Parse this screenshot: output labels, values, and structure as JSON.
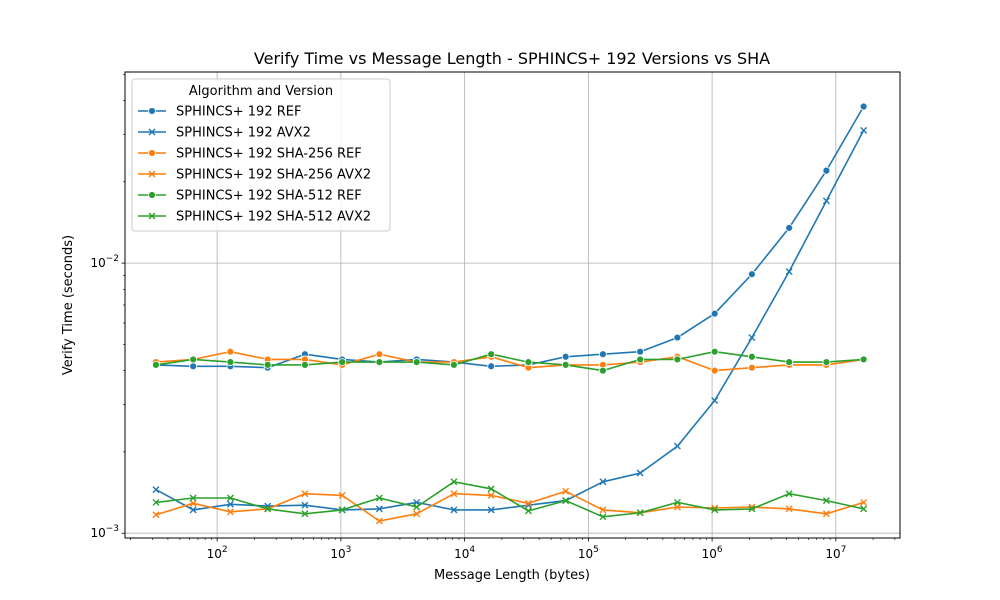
{
  "chart_data": {
    "type": "line",
    "title": "Verify Time vs Message Length - SPHINCS+ 192 Versions vs SHA",
    "xlabel": "Message Length (bytes)",
    "ylabel": "Verify Time (seconds)",
    "xscale": "log",
    "yscale": "log",
    "xlim": [
      18,
      33000000
    ],
    "ylim": [
      0.00096,
      0.051
    ],
    "grid": true,
    "x_ticks": [
      {
        "value": 100,
        "base": "10",
        "exp": "2"
      },
      {
        "value": 1000,
        "base": "10",
        "exp": "3"
      },
      {
        "value": 10000,
        "base": "10",
        "exp": "4"
      },
      {
        "value": 100000,
        "base": "10",
        "exp": "5"
      },
      {
        "value": 1000000,
        "base": "10",
        "exp": "6"
      },
      {
        "value": 10000000,
        "base": "10",
        "exp": "7"
      }
    ],
    "y_ticks": [
      {
        "value": 0.001,
        "base": "10",
        "exp": "−3"
      },
      {
        "value": 0.01,
        "base": "10",
        "exp": "−2"
      }
    ],
    "legend": {
      "title": "Algorithm and Version",
      "position": "top-left"
    },
    "x": [
      32,
      64,
      128,
      256,
      512,
      1024,
      2048,
      4096,
      8192,
      16384,
      32768,
      65536,
      131072,
      262144,
      524288,
      1048576,
      2097152,
      4194304,
      8388608,
      16777216
    ],
    "series": [
      {
        "name": "SPHINCS+ 192 REF",
        "color": "#1f77b4",
        "marker": "circle",
        "values": [
          0.0042,
          0.00415,
          0.00415,
          0.0041,
          0.0046,
          0.0044,
          0.0043,
          0.0044,
          0.0043,
          0.00415,
          0.0042,
          0.0045,
          0.0046,
          0.0047,
          0.0053,
          0.0065,
          0.0091,
          0.0135,
          0.022,
          0.038
        ]
      },
      {
        "name": "SPHINCS+ 192 AVX2",
        "color": "#1f77b4",
        "marker": "x",
        "values": [
          0.00145,
          0.00122,
          0.00128,
          0.00126,
          0.00127,
          0.00122,
          0.00123,
          0.0013,
          0.00122,
          0.00122,
          0.00127,
          0.00132,
          0.00155,
          0.00167,
          0.0021,
          0.0031,
          0.0053,
          0.0093,
          0.017,
          0.031
        ]
      },
      {
        "name": "SPHINCS+ 192 SHA-256 REF",
        "color": "#ff7f0e",
        "marker": "circle",
        "values": [
          0.0043,
          0.0044,
          0.0047,
          0.0044,
          0.0044,
          0.0042,
          0.0046,
          0.0043,
          0.0043,
          0.0045,
          0.0041,
          0.0042,
          0.0042,
          0.0043,
          0.0045,
          0.004,
          0.0041,
          0.0042,
          0.0042,
          0.0044
        ]
      },
      {
        "name": "SPHINCS+ 192 SHA-256 AVX2",
        "color": "#ff7f0e",
        "marker": "x",
        "values": [
          0.00117,
          0.00129,
          0.0012,
          0.00123,
          0.0014,
          0.00138,
          0.00111,
          0.00118,
          0.0014,
          0.00138,
          0.00129,
          0.00143,
          0.00122,
          0.00119,
          0.00125,
          0.00124,
          0.00125,
          0.00123,
          0.00118,
          0.0013
        ]
      },
      {
        "name": "SPHINCS+ 192 SHA-512 REF",
        "color": "#2ca02c",
        "marker": "circle",
        "values": [
          0.0042,
          0.0044,
          0.0043,
          0.0042,
          0.0042,
          0.0043,
          0.0043,
          0.0043,
          0.0042,
          0.0046,
          0.0043,
          0.0042,
          0.004,
          0.0044,
          0.0044,
          0.0047,
          0.0045,
          0.0043,
          0.0043,
          0.0044
        ]
      },
      {
        "name": "SPHINCS+ 192 SHA-512 AVX2",
        "color": "#2ca02c",
        "marker": "x",
        "values": [
          0.0013,
          0.00135,
          0.00135,
          0.00123,
          0.00118,
          0.00122,
          0.00135,
          0.00125,
          0.00155,
          0.00146,
          0.00121,
          0.00132,
          0.00115,
          0.00119,
          0.0013,
          0.00122,
          0.00123,
          0.0014,
          0.00132,
          0.00123
        ]
      }
    ]
  }
}
